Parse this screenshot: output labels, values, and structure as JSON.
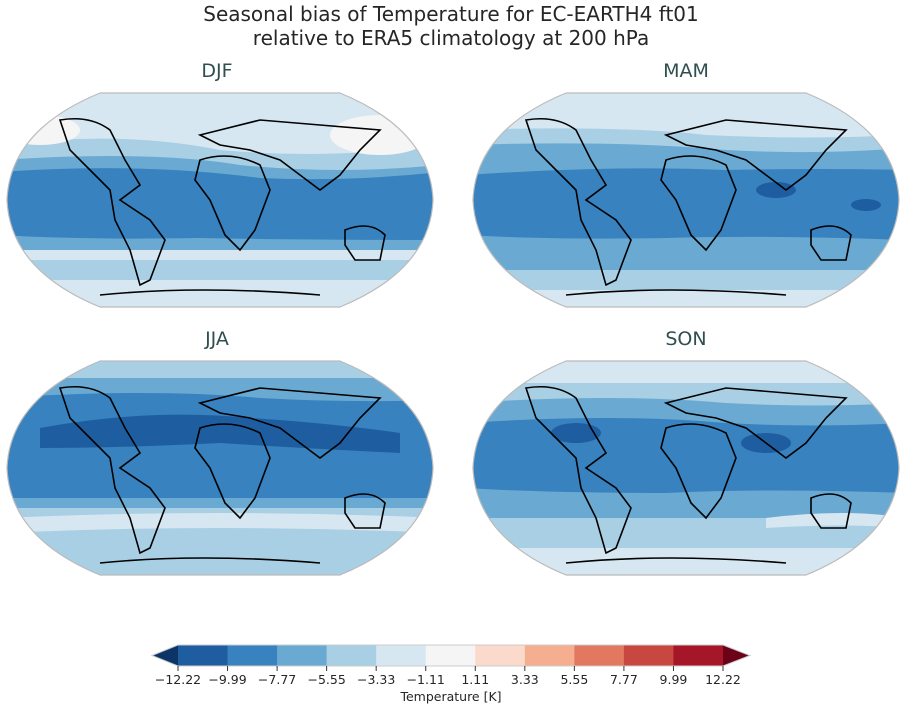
{
  "title": {
    "line1": "Seasonal bias of Temperature for EC-EARTH4 ft01",
    "line2": "relative to ERA5 climatology at 200 hPa"
  },
  "panels": [
    {
      "label": "DJF"
    },
    {
      "label": "MAM"
    },
    {
      "label": "JJA"
    },
    {
      "label": "SON"
    }
  ],
  "colorbar": {
    "label": "Temperature [K]",
    "ticks": [
      "−12.22",
      "−9.99",
      "−7.77",
      "−5.55",
      "−3.33",
      "−1.11",
      "1.11",
      "3.33",
      "5.55",
      "7.77",
      "9.99",
      "12.22"
    ],
    "colors": [
      "#1e5ea0",
      "#3882bf",
      "#6aaad2",
      "#a9cfe5",
      "#d6e7f1",
      "#f5f5f5",
      "#fbdacb",
      "#f5ae8f",
      "#e2785f",
      "#c84741",
      "#a41628"
    ],
    "under_color": "#0c3466",
    "over_color": "#6b0218"
  },
  "chart_data": {
    "type": "heatmap",
    "title": "Seasonal bias of Temperature for EC-EARTH4 ft01 relative to ERA5 climatology at 200 hPa",
    "subplots": [
      "DJF",
      "MAM",
      "JJA",
      "SON"
    ],
    "projection": "Robinson (global map, coastlines)",
    "variable": "Temperature bias",
    "units": "K",
    "levels": [
      -12.22,
      -9.99,
      -7.77,
      -5.55,
      -3.33,
      -1.11,
      1.11,
      3.33,
      5.55,
      7.77,
      9.99,
      12.22
    ],
    "colormap": "RdBu_r (diverging, extended both ends)",
    "colorbar_label": "Temperature [K]",
    "summary": {
      "DJF": "Tropics mostly -7.77 to -9.99 K; mid-latitudes -3.33 to -7.77 K; high latitudes -1.11 to -3.33 K",
      "MAM": "Tropics -7.77 to -9.99 K with patches below -9.99 K over Indian Ocean/Maritime Continent; high latitudes -1.11 to -5.55 K",
      "JJA": "Broad band of -9.99 to -12.22 K in northern subtropics; southern hemisphere -3.33 to -5.55 K",
      "SON": "Tropics -7.77 to -9.99 K with patches below -9.99 K over Caribbean and South Asia; polar regions -1.11 to -5.55 K"
    }
  }
}
